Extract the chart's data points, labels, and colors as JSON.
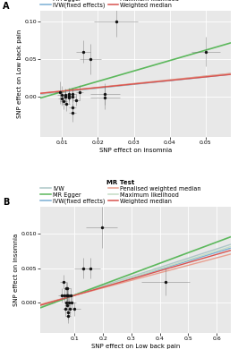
{
  "panel_A": {
    "title": "A",
    "xlabel": "SNP effect on insomnia",
    "ylabel": "SNP effect on Low back pain",
    "xlim": [
      0.004,
      0.057
    ],
    "ylim": [
      -0.055,
      0.115
    ],
    "xticks": [
      0.01,
      0.02,
      0.03,
      0.04,
      0.05
    ],
    "yticks": [
      0.0,
      0.05,
      0.1
    ],
    "points": [
      [
        0.0095,
        0.005
      ],
      [
        0.0098,
        0.002
      ],
      [
        0.01,
        -0.003
      ],
      [
        0.0105,
        -0.007
      ],
      [
        0.011,
        0.0
      ],
      [
        0.011,
        0.002
      ],
      [
        0.0112,
        -0.01
      ],
      [
        0.012,
        0.001
      ],
      [
        0.012,
        -0.002
      ],
      [
        0.012,
        0.003
      ],
      [
        0.013,
        -0.015
      ],
      [
        0.013,
        -0.022
      ],
      [
        0.013,
        0.0
      ],
      [
        0.013,
        0.003
      ],
      [
        0.014,
        -0.005
      ],
      [
        0.015,
        0.005
      ],
      [
        0.016,
        0.06
      ],
      [
        0.018,
        0.05
      ],
      [
        0.022,
        0.003
      ],
      [
        0.022,
        -0.002
      ],
      [
        0.025,
        0.1
      ],
      [
        0.05,
        0.06
      ]
    ],
    "xerr": [
      0.0015,
      0.001,
      0.001,
      0.001,
      0.0008,
      0.0008,
      0.001,
      0.001,
      0.001,
      0.001,
      0.001,
      0.001,
      0.001,
      0.001,
      0.001,
      0.001,
      0.002,
      0.003,
      0.004,
      0.004,
      0.006,
      0.004
    ],
    "yerr": [
      0.015,
      0.012,
      0.01,
      0.01,
      0.008,
      0.008,
      0.01,
      0.008,
      0.008,
      0.008,
      0.01,
      0.012,
      0.008,
      0.008,
      0.008,
      0.01,
      0.015,
      0.02,
      0.015,
      0.015,
      0.02,
      0.02
    ],
    "lines": {
      "IVW": {
        "slope": 0.52,
        "intercept": 0.001,
        "color": "#aec7c8",
        "lw": 1.0
      },
      "IVW_fixed": {
        "slope": 0.5,
        "intercept": 0.001,
        "color": "#7bafd4",
        "lw": 1.0
      },
      "Max_likelihood": {
        "slope": 0.51,
        "intercept": 0.001,
        "color": "#c5ddc5",
        "lw": 1.0
      },
      "MR_Egger": {
        "slope": 1.4,
        "intercept": -0.008,
        "color": "#5cb85c",
        "lw": 1.2
      },
      "Penalised_weighted": {
        "slope": 0.5,
        "intercept": 0.002,
        "color": "#e8a090",
        "lw": 1.0
      },
      "Weighted_median": {
        "slope": 0.48,
        "intercept": 0.002,
        "color": "#d9534f",
        "lw": 1.0
      }
    }
  },
  "panel_B": {
    "title": "B",
    "xlabel": "SNP effect on Low back pain",
    "ylabel": "SNP effect on insomnia",
    "xlim": [
      -0.02,
      0.65
    ],
    "ylim": [
      -0.0045,
      0.014
    ],
    "xticks": [
      0.1,
      0.2,
      0.3,
      0.4,
      0.5,
      0.6
    ],
    "yticks": [
      0.0,
      0.005,
      0.01
    ],
    "points": [
      [
        0.055,
        0.001
      ],
      [
        0.06,
        0.003
      ],
      [
        0.065,
        0.001
      ],
      [
        0.068,
        -0.001
      ],
      [
        0.07,
        0.002
      ],
      [
        0.072,
        0.0
      ],
      [
        0.073,
        0.001
      ],
      [
        0.074,
        -0.0005
      ],
      [
        0.075,
        0.001
      ],
      [
        0.075,
        0.002
      ],
      [
        0.076,
        -0.0015
      ],
      [
        0.077,
        -0.002
      ],
      [
        0.078,
        0.001
      ],
      [
        0.08,
        0.0
      ],
      [
        0.082,
        -0.001
      ],
      [
        0.085,
        0.001
      ],
      [
        0.09,
        0.0
      ],
      [
        0.1,
        -0.001
      ],
      [
        0.13,
        0.005
      ],
      [
        0.155,
        0.005
      ],
      [
        0.195,
        0.011
      ],
      [
        0.42,
        0.003
      ]
    ],
    "xerr": [
      0.012,
      0.01,
      0.01,
      0.01,
      0.01,
      0.01,
      0.01,
      0.01,
      0.01,
      0.01,
      0.01,
      0.01,
      0.01,
      0.01,
      0.01,
      0.012,
      0.015,
      0.02,
      0.03,
      0.035,
      0.055,
      0.085
    ],
    "yerr": [
      0.001,
      0.001,
      0.001,
      0.001,
      0.001,
      0.001,
      0.001,
      0.001,
      0.001,
      0.001,
      0.001,
      0.001,
      0.001,
      0.001,
      0.001,
      0.001,
      0.001,
      0.001,
      0.0015,
      0.0015,
      0.003,
      0.002
    ],
    "lines": {
      "IVW": {
        "slope": 0.0135,
        "intercept": -0.0003,
        "color": "#aec7c8",
        "lw": 1.0
      },
      "IVW_fixed": {
        "slope": 0.0125,
        "intercept": -0.0002,
        "color": "#7bafd4",
        "lw": 1.0
      },
      "Max_likelihood": {
        "slope": 0.013,
        "intercept": -0.0003,
        "color": "#c5ddc5",
        "lw": 1.0
      },
      "MR_Egger": {
        "slope": 0.0155,
        "intercept": -0.0005,
        "color": "#5cb85c",
        "lw": 1.2
      },
      "Penalised_weighted": {
        "slope": 0.011,
        "intercept": -0.0001,
        "color": "#e8a090",
        "lw": 1.0
      },
      "Weighted_median": {
        "slope": 0.012,
        "intercept": -0.0002,
        "color": "#d9534f",
        "lw": 1.0
      }
    }
  },
  "legend_entries": [
    {
      "label": "IVW",
      "color": "#aec7c8"
    },
    {
      "label": "MR Egger",
      "color": "#5cb85c"
    },
    {
      "label": "IVW(fixed effects)",
      "color": "#7bafd4"
    },
    {
      "label": "Penalised weighted median",
      "color": "#e8a090"
    },
    {
      "label": "Maximum likelihood",
      "color": "#c5ddc5"
    },
    {
      "label": "Weighted median",
      "color": "#d9534f"
    }
  ],
  "legend_title": "MR Test",
  "bg_color": "#e8e8e8",
  "grid_color": "#ffffff",
  "point_color": "#111111",
  "point_size": 6,
  "font_size": 5.0,
  "tick_font_size": 4.5
}
